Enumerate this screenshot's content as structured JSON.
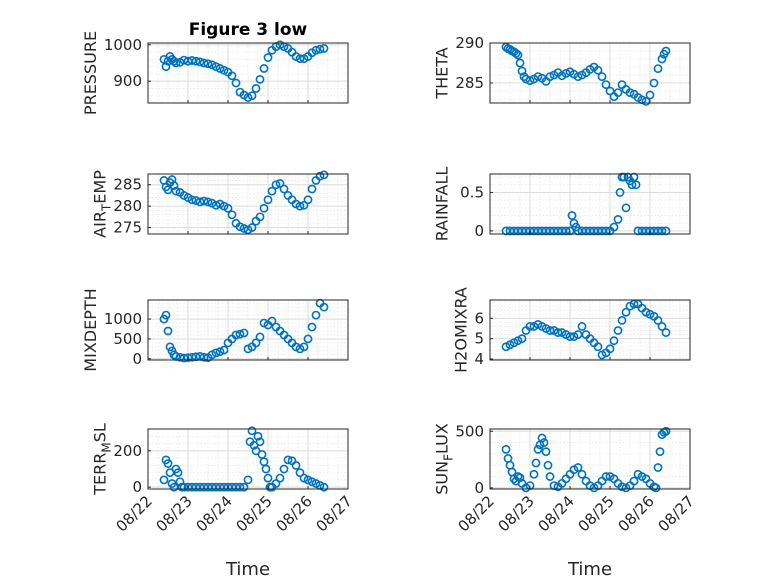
{
  "marker_color": "#0072BD",
  "chart_data": [
    {
      "id": "pressure",
      "type": "scatter",
      "title": "Figure 3 low",
      "ylabel": "PRESSURE",
      "ylim": [
        840,
        1005
      ],
      "yticks": [
        900,
        1000
      ],
      "xlim": [
        0,
        5
      ],
      "xticks": [
        "08/22",
        "08/23",
        "08/24",
        "08/25",
        "08/26",
        "08/27"
      ],
      "xlabel": "",
      "grid": true,
      "x": [
        0.4,
        0.45,
        0.5,
        0.55,
        0.6,
        0.65,
        0.7,
        0.8,
        0.9,
        1.0,
        1.1,
        1.2,
        1.3,
        1.4,
        1.5,
        1.6,
        1.7,
        1.8,
        1.9,
        2.0,
        2.1,
        2.2,
        2.3,
        2.4,
        2.5,
        2.6,
        2.7,
        2.8,
        2.9,
        3.0,
        3.1,
        3.2,
        3.3,
        3.4,
        3.5,
        3.6,
        3.7,
        3.8,
        3.9,
        4.0,
        4.1,
        4.2,
        4.3,
        4.4
      ],
      "y": [
        960,
        940,
        955,
        968,
        960,
        955,
        950,
        952,
        958,
        955,
        957,
        955,
        953,
        950,
        948,
        945,
        940,
        935,
        930,
        925,
        915,
        895,
        870,
        862,
        855,
        860,
        880,
        905,
        935,
        965,
        985,
        995,
        1000,
        995,
        990,
        980,
        968,
        962,
        962,
        968,
        978,
        985,
        988,
        990
      ]
    },
    {
      "id": "theta",
      "type": "scatter",
      "title": "",
      "ylabel": "THETA",
      "ylim": [
        282.5,
        290
      ],
      "yticks": [
        285,
        290
      ],
      "xlim": [
        0,
        5
      ],
      "xticks": [
        "08/22",
        "08/23",
        "08/24",
        "08/25",
        "08/26",
        "08/27"
      ],
      "xlabel": "",
      "grid": true,
      "x": [
        0.4,
        0.45,
        0.5,
        0.55,
        0.6,
        0.65,
        0.7,
        0.75,
        0.8,
        0.85,
        0.9,
        1.0,
        1.1,
        1.2,
        1.3,
        1.4,
        1.5,
        1.6,
        1.7,
        1.8,
        1.9,
        2.0,
        2.1,
        2.2,
        2.3,
        2.4,
        2.5,
        2.6,
        2.7,
        2.8,
        2.9,
        3.0,
        3.1,
        3.2,
        3.3,
        3.4,
        3.5,
        3.6,
        3.7,
        3.8,
        3.9,
        4.0,
        4.1,
        4.2,
        4.3,
        4.35,
        4.4
      ],
      "y": [
        289.5,
        289.3,
        289.2,
        289.0,
        288.9,
        288.7,
        288.5,
        287.5,
        286.5,
        285.8,
        285.5,
        285.3,
        285.5,
        285.8,
        285.6,
        285.2,
        285.8,
        286.0,
        286.3,
        285.9,
        286.2,
        286.4,
        286.1,
        285.8,
        286.0,
        286.3,
        286.7,
        287.0,
        286.6,
        285.8,
        284.8,
        284.0,
        283.3,
        283.8,
        284.8,
        284.2,
        283.8,
        283.6,
        283.2,
        282.9,
        282.7,
        283.5,
        285.0,
        286.8,
        288.0,
        288.6,
        289.0
      ]
    },
    {
      "id": "airtemp",
      "type": "scatter",
      "title": "",
      "ylabel": "AIR_TEMP",
      "ylim": [
        273.5,
        287.5
      ],
      "yticks": [
        275,
        280,
        285
      ],
      "xlim": [
        0,
        5
      ],
      "xticks": [
        "08/22",
        "08/23",
        "08/24",
        "08/25",
        "08/26",
        "08/27"
      ],
      "xlabel": "",
      "grid": true,
      "x": [
        0.4,
        0.45,
        0.5,
        0.55,
        0.6,
        0.65,
        0.7,
        0.8,
        0.9,
        1.0,
        1.1,
        1.2,
        1.3,
        1.4,
        1.5,
        1.6,
        1.7,
        1.8,
        1.9,
        2.0,
        2.1,
        2.2,
        2.3,
        2.4,
        2.5,
        2.6,
        2.7,
        2.8,
        2.9,
        3.0,
        3.1,
        3.2,
        3.3,
        3.4,
        3.5,
        3.6,
        3.7,
        3.8,
        3.9,
        4.0,
        4.1,
        4.2,
        4.3,
        4.4
      ],
      "y": [
        286.0,
        284.5,
        283.8,
        285.5,
        286.2,
        284.8,
        283.5,
        283.2,
        282.5,
        282.0,
        281.5,
        281.3,
        281.0,
        281.2,
        281.0,
        280.7,
        280.2,
        280.5,
        280.0,
        279.5,
        278.0,
        276.0,
        275.2,
        274.8,
        274.5,
        275.0,
        276.5,
        277.5,
        279.5,
        281.5,
        283.5,
        285.0,
        285.3,
        284.0,
        282.5,
        281.5,
        280.5,
        280.0,
        280.2,
        281.5,
        284.0,
        286.0,
        287.0,
        287.3
      ]
    },
    {
      "id": "rainfall",
      "type": "scatter",
      "title": "",
      "ylabel": "RAINFALL",
      "ylim": [
        -0.04,
        0.74
      ],
      "yticks": [
        0,
        0.5
      ],
      "xlim": [
        0,
        5
      ],
      "xticks": [
        "08/22",
        "08/23",
        "08/24",
        "08/25",
        "08/26",
        "08/27"
      ],
      "xlabel": "",
      "grid": true,
      "x": [
        0.4,
        0.5,
        0.6,
        0.7,
        0.8,
        0.9,
        1.0,
        1.1,
        1.2,
        1.3,
        1.4,
        1.5,
        1.6,
        1.7,
        1.8,
        1.9,
        2.0,
        2.05,
        2.1,
        2.15,
        2.2,
        2.3,
        2.4,
        2.5,
        2.6,
        2.7,
        2.8,
        2.9,
        3.0,
        3.1,
        3.2,
        3.25,
        3.3,
        3.35,
        3.4,
        3.45,
        3.5,
        3.55,
        3.6,
        3.65,
        3.7,
        3.8,
        3.9,
        4.0,
        4.1,
        4.2,
        4.3,
        4.4
      ],
      "y": [
        0,
        0,
        0,
        0,
        0,
        0,
        0,
        0,
        0,
        0,
        0,
        0,
        0,
        0,
        0,
        0,
        0,
        0.2,
        0.1,
        0.05,
        0,
        0,
        0,
        0,
        0,
        0,
        0,
        0,
        0,
        0.05,
        0.15,
        0.5,
        0.7,
        0.7,
        0.3,
        0.7,
        0.65,
        0.6,
        0.7,
        0.6,
        0,
        0,
        0,
        0,
        0,
        0,
        0,
        0
      ]
    },
    {
      "id": "mixdepth",
      "type": "scatter",
      "title": "",
      "ylabel": "MIXDEPTH",
      "ylim": [
        -30,
        1480
      ],
      "yticks": [
        0,
        500,
        1000
      ],
      "xlim": [
        0,
        5
      ],
      "xticks": [
        "08/22",
        "08/23",
        "08/24",
        "08/25",
        "08/26",
        "08/27"
      ],
      "xlabel": "",
      "grid": true,
      "x": [
        0.4,
        0.45,
        0.5,
        0.55,
        0.6,
        0.65,
        0.7,
        0.8,
        0.9,
        1.0,
        1.1,
        1.2,
        1.3,
        1.4,
        1.5,
        1.6,
        1.7,
        1.8,
        1.9,
        2.0,
        2.1,
        2.2,
        2.3,
        2.4,
        2.5,
        2.6,
        2.7,
        2.8,
        2.9,
        3.0,
        3.1,
        3.2,
        3.3,
        3.4,
        3.5,
        3.6,
        3.7,
        3.8,
        3.9,
        4.0,
        4.1,
        4.2,
        4.3,
        4.4
      ],
      "y": [
        1000,
        1100,
        700,
        300,
        200,
        100,
        60,
        40,
        20,
        30,
        40,
        50,
        60,
        40,
        30,
        100,
        150,
        180,
        220,
        400,
        500,
        600,
        620,
        650,
        250,
        300,
        400,
        550,
        900,
        850,
        950,
        800,
        700,
        600,
        500,
        400,
        300,
        250,
        300,
        500,
        800,
        1100,
        1400,
        1300
      ]
    },
    {
      "id": "h2omixra",
      "type": "scatter",
      "title": "",
      "ylabel": "H2OMIXRA",
      "ylim": [
        3.95,
        6.9
      ],
      "yticks": [
        4,
        5,
        6
      ],
      "xlim": [
        0,
        5
      ],
      "xticks": [
        "08/22",
        "08/23",
        "08/24",
        "08/25",
        "08/26",
        "08/27"
      ],
      "xlabel": "",
      "grid": true,
      "x": [
        0.4,
        0.5,
        0.6,
        0.7,
        0.8,
        0.9,
        1.0,
        1.1,
        1.2,
        1.3,
        1.4,
        1.5,
        1.6,
        1.7,
        1.8,
        1.9,
        2.0,
        2.1,
        2.2,
        2.3,
        2.4,
        2.5,
        2.6,
        2.7,
        2.8,
        2.9,
        3.0,
        3.1,
        3.2,
        3.3,
        3.4,
        3.5,
        3.6,
        3.7,
        3.8,
        3.9,
        4.0,
        4.1,
        4.2,
        4.3,
        4.4
      ],
      "y": [
        4.6,
        4.7,
        4.8,
        4.9,
        5.0,
        5.4,
        5.6,
        5.6,
        5.7,
        5.6,
        5.5,
        5.4,
        5.4,
        5.3,
        5.3,
        5.2,
        5.1,
        5.1,
        5.2,
        5.6,
        5.2,
        5.0,
        4.8,
        4.6,
        4.2,
        4.3,
        4.5,
        4.9,
        5.4,
        5.9,
        6.3,
        6.6,
        6.7,
        6.7,
        6.5,
        6.3,
        6.2,
        6.1,
        5.9,
        5.6,
        5.3
      ]
    },
    {
      "id": "terrmsl",
      "type": "scatter",
      "title": "",
      "ylabel": "TERR_MSL",
      "ylim": [
        -10,
        320
      ],
      "yticks": [
        0,
        200
      ],
      "xlim": [
        0,
        5
      ],
      "xticks": [
        "08/22",
        "08/23",
        "08/24",
        "08/25",
        "08/26",
        "08/27"
      ],
      "xlabel": "",
      "grid": true,
      "x": [
        0.4,
        0.45,
        0.5,
        0.55,
        0.6,
        0.65,
        0.7,
        0.75,
        0.8,
        0.85,
        0.9,
        1.0,
        1.1,
        1.2,
        1.3,
        1.4,
        1.5,
        1.6,
        1.7,
        1.8,
        1.9,
        2.0,
        2.1,
        2.2,
        2.3,
        2.4,
        2.5,
        2.55,
        2.6,
        2.65,
        2.7,
        2.75,
        2.8,
        2.85,
        2.9,
        2.95,
        3.0,
        3.05,
        3.1,
        3.2,
        3.3,
        3.4,
        3.5,
        3.6,
        3.7,
        3.8,
        3.9,
        4.0,
        4.1,
        4.2,
        4.3,
        4.4
      ],
      "y": [
        40,
        150,
        130,
        80,
        20,
        0,
        100,
        80,
        30,
        0,
        0,
        0,
        0,
        0,
        0,
        0,
        0,
        0,
        0,
        0,
        0,
        0,
        0,
        0,
        0,
        0,
        40,
        250,
        310,
        230,
        200,
        280,
        250,
        180,
        140,
        100,
        50,
        0,
        0,
        20,
        50,
        100,
        150,
        145,
        120,
        80,
        50,
        40,
        30,
        20,
        10,
        0
      ]
    },
    {
      "id": "sunflux",
      "type": "scatter",
      "title": "",
      "ylabel": "SUN_FLUX",
      "ylim": [
        -10,
        520
      ],
      "yticks": [
        0,
        500
      ],
      "xlim": [
        0,
        5
      ],
      "xticks": [
        "08/22",
        "08/23",
        "08/24",
        "08/25",
        "08/26",
        "08/27"
      ],
      "xlabel": "",
      "grid": true,
      "x": [
        0.4,
        0.45,
        0.5,
        0.55,
        0.6,
        0.65,
        0.7,
        0.75,
        0.8,
        0.9,
        1.0,
        1.1,
        1.15,
        1.2,
        1.25,
        1.3,
        1.35,
        1.4,
        1.45,
        1.5,
        1.6,
        1.7,
        1.8,
        1.9,
        2.0,
        2.1,
        2.2,
        2.3,
        2.4,
        2.5,
        2.6,
        2.7,
        2.8,
        2.9,
        3.0,
        3.1,
        3.2,
        3.3,
        3.4,
        3.5,
        3.6,
        3.7,
        3.8,
        3.9,
        4.0,
        4.1,
        4.15,
        4.2,
        4.25,
        4.3,
        4.35,
        4.4
      ],
      "y": [
        340,
        260,
        200,
        140,
        80,
        60,
        100,
        90,
        40,
        0,
        20,
        120,
        220,
        340,
        380,
        440,
        400,
        320,
        200,
        100,
        20,
        10,
        40,
        80,
        120,
        160,
        180,
        120,
        60,
        20,
        0,
        20,
        60,
        100,
        100,
        80,
        40,
        10,
        0,
        20,
        60,
        120,
        100,
        80,
        40,
        10,
        0,
        180,
        320,
        470,
        490,
        500
      ]
    }
  ]
}
